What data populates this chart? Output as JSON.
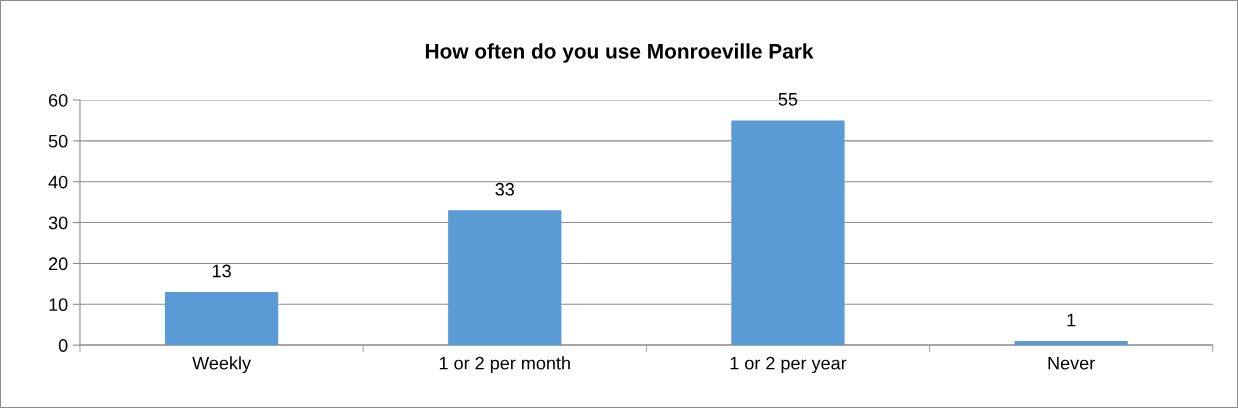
{
  "chart_data": {
    "type": "bar",
    "title": "How often do you use Monroeville Park",
    "categories": [
      "Weekly",
      "1 or 2 per month",
      "1 or 2 per year",
      "Never"
    ],
    "values": [
      13,
      33,
      55,
      1
    ],
    "color": "#5b9bd5",
    "ylim": [
      0,
      60
    ],
    "yticks": [
      0,
      10,
      20,
      30,
      40,
      50,
      60
    ],
    "grid": "y",
    "data_labels": true
  }
}
